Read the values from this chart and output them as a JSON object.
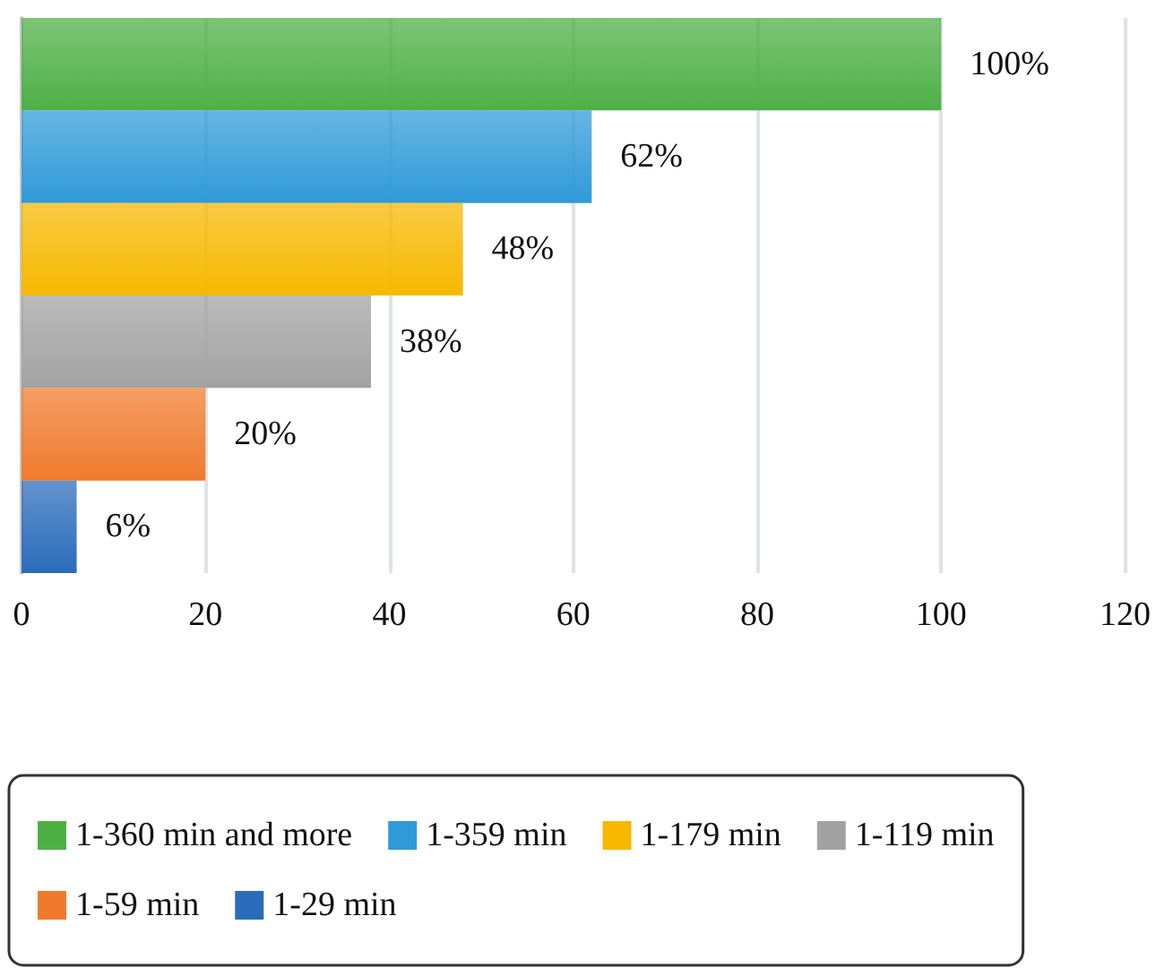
{
  "chart_data": {
    "type": "bar",
    "orientation": "horizontal",
    "categories": [
      null,
      null,
      null,
      null,
      null,
      null
    ],
    "series": [
      {
        "name": "1-360 min and more",
        "color": "#4db045",
        "values": [
          100,
          null,
          null,
          null,
          null,
          null
        ],
        "value_labels": [
          "100%",
          null,
          null,
          null,
          null,
          null
        ]
      },
      {
        "name": "1-359 min",
        "color": "#2f9ad8",
        "values": [
          null,
          62,
          null,
          null,
          null,
          null
        ],
        "value_labels": [
          null,
          "62%",
          null,
          null,
          null,
          null
        ]
      },
      {
        "name": "1-179 min",
        "color": "#f7b800",
        "values": [
          null,
          null,
          48,
          null,
          null,
          null
        ],
        "value_labels": [
          null,
          null,
          "48%",
          null,
          null,
          null
        ]
      },
      {
        "name": "1-119 min",
        "color": "#a2a2a2",
        "values": [
          null,
          null,
          null,
          38,
          null,
          null
        ],
        "value_labels": [
          null,
          null,
          null,
          "38%",
          null,
          null
        ]
      },
      {
        "name": "1-59 min",
        "color": "#ef7a2c",
        "values": [
          null,
          null,
          null,
          null,
          20,
          null
        ],
        "value_labels": [
          null,
          null,
          null,
          null,
          "20%",
          null
        ]
      },
      {
        "name": "1-29 min",
        "color": "#2a6cbb",
        "values": [
          null,
          null,
          null,
          null,
          null,
          6
        ],
        "value_labels": [
          null,
          null,
          null,
          null,
          null,
          "6%"
        ]
      }
    ],
    "xlim": [
      0,
      120
    ],
    "xticks": [
      0,
      20,
      40,
      60,
      80,
      100,
      120
    ],
    "grid": "x",
    "legend": "bottom"
  }
}
